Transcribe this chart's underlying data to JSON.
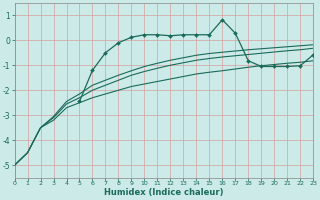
{
  "xlabel": "Humidex (Indice chaleur)",
  "bg_color": "#cceae7",
  "grid_color": "#d4a0a0",
  "line_color": "#1a6b5a",
  "xlim": [
    0,
    23
  ],
  "ylim": [
    -5.5,
    1.5
  ],
  "yticks": [
    1,
    0,
    -1,
    -2,
    -3,
    -4,
    -5
  ],
  "xticks": [
    0,
    1,
    2,
    3,
    4,
    5,
    6,
    7,
    8,
    9,
    10,
    11,
    12,
    13,
    14,
    15,
    16,
    17,
    18,
    19,
    20,
    21,
    22,
    23
  ],
  "curve_line1_x": [
    0,
    1,
    2,
    3,
    4,
    5,
    6,
    7,
    8,
    9,
    10,
    11,
    12,
    13,
    14,
    15,
    16,
    17,
    18,
    19,
    20,
    21,
    22,
    23
  ],
  "curve_line1_y": [
    -5.0,
    -4.5,
    -3.5,
    -3.2,
    -2.7,
    -2.5,
    -2.3,
    -2.15,
    -2.0,
    -1.85,
    -1.75,
    -1.65,
    -1.55,
    -1.45,
    -1.35,
    -1.28,
    -1.22,
    -1.15,
    -1.08,
    -1.02,
    -0.97,
    -0.92,
    -0.88,
    -0.82
  ],
  "curve_line2_x": [
    0,
    1,
    2,
    3,
    4,
    5,
    6,
    7,
    8,
    9,
    10,
    11,
    12,
    13,
    14,
    15,
    16,
    17,
    18,
    19,
    20,
    21,
    22,
    23
  ],
  "curve_line2_y": [
    -5.0,
    -4.5,
    -3.5,
    -3.1,
    -2.55,
    -2.3,
    -2.0,
    -1.8,
    -1.6,
    -1.4,
    -1.25,
    -1.12,
    -1.0,
    -0.9,
    -0.8,
    -0.73,
    -0.67,
    -0.62,
    -0.57,
    -0.52,
    -0.47,
    -0.42,
    -0.38,
    -0.32
  ],
  "curve_line3_x": [
    0,
    1,
    2,
    3,
    4,
    5,
    6,
    7,
    8,
    9,
    10,
    11,
    12,
    13,
    14,
    15,
    16,
    17,
    18,
    19,
    20,
    21,
    22,
    23
  ],
  "curve_line3_y": [
    -5.0,
    -4.5,
    -3.5,
    -3.05,
    -2.45,
    -2.15,
    -1.8,
    -1.6,
    -1.4,
    -1.22,
    -1.05,
    -0.92,
    -0.8,
    -0.7,
    -0.6,
    -0.53,
    -0.48,
    -0.43,
    -0.38,
    -0.34,
    -0.3,
    -0.26,
    -0.22,
    -0.18
  ],
  "curve_marker_x": [
    5,
    6,
    7,
    8,
    9,
    10,
    11,
    12,
    13,
    14,
    15,
    16,
    17,
    18,
    19,
    20,
    21,
    22,
    23
  ],
  "curve_marker_y": [
    -2.45,
    -1.2,
    -0.5,
    -0.1,
    0.12,
    0.22,
    0.22,
    0.18,
    0.22,
    0.22,
    0.22,
    0.82,
    0.28,
    -0.82,
    -1.05,
    -1.05,
    -1.05,
    -1.02,
    -0.58
  ]
}
